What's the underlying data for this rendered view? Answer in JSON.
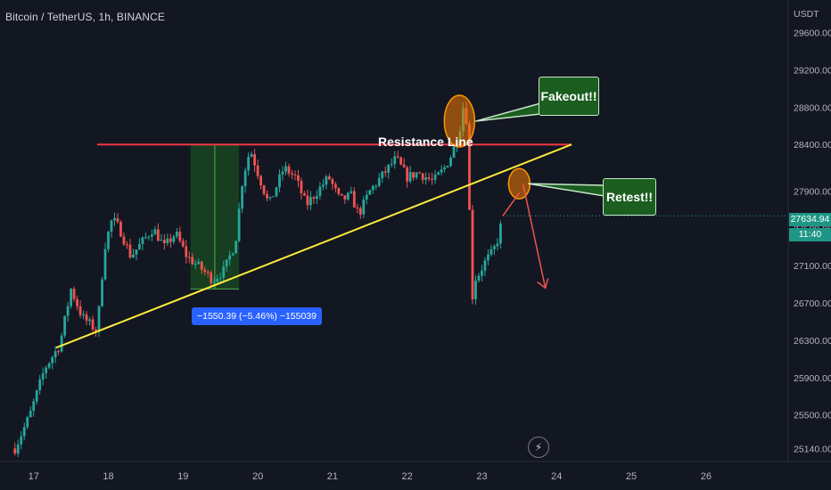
{
  "symbol": "Bitcoin / TetherUS, 1h, BINANCE",
  "chart_data": {
    "type": "candlestick",
    "currency": "USDT",
    "x_unit": "days",
    "x_ticks": [
      "17",
      "18",
      "19",
      "20",
      "21",
      "22",
      "23",
      "24",
      "25",
      "26"
    ],
    "y_ticks": [
      "29600.00",
      "29200.00",
      "28800.00",
      "28400.00",
      "27900.00",
      "27500.00",
      "27100.00",
      "26700.00",
      "26300.00",
      "25900.00",
      "25500.00",
      "25140.00"
    ],
    "y_tick_values": [
      29600,
      29200,
      28800,
      28400,
      27900,
      27500,
      27100,
      26700,
      26300,
      25900,
      25500,
      25140
    ],
    "ylim": [
      25000,
      29950
    ],
    "xlim": [
      16.55,
      27.1
    ],
    "current_price": "27634.94",
    "countdown": "11:40",
    "price_path": [
      [
        16.75,
        25140
      ],
      [
        16.95,
        25500
      ],
      [
        17.15,
        26000
      ],
      [
        17.35,
        26250
      ],
      [
        17.5,
        26850
      ],
      [
        17.65,
        26550
      ],
      [
        17.85,
        26400
      ],
      [
        17.95,
        27300
      ],
      [
        18.05,
        27600
      ],
      [
        18.15,
        27500
      ],
      [
        18.3,
        27200
      ],
      [
        18.45,
        27350
      ],
      [
        18.6,
        27500
      ],
      [
        18.75,
        27300
      ],
      [
        18.9,
        27450
      ],
      [
        19.05,
        27200
      ],
      [
        19.2,
        27100
      ],
      [
        19.4,
        26950
      ],
      [
        19.55,
        27050
      ],
      [
        19.7,
        27350
      ],
      [
        19.8,
        28050
      ],
      [
        19.9,
        28350
      ],
      [
        20.0,
        28100
      ],
      [
        20.15,
        27750
      ],
      [
        20.35,
        28150
      ],
      [
        20.5,
        28050
      ],
      [
        20.65,
        27750
      ],
      [
        20.8,
        27900
      ],
      [
        20.95,
        28050
      ],
      [
        21.1,
        27800
      ],
      [
        21.25,
        27850
      ],
      [
        21.35,
        27650
      ],
      [
        21.5,
        27900
      ],
      [
        21.7,
        28100
      ],
      [
        21.85,
        28250
      ],
      [
        22.0,
        28050
      ],
      [
        22.15,
        28100
      ],
      [
        22.35,
        28000
      ],
      [
        22.5,
        28150
      ],
      [
        22.6,
        28300
      ],
      [
        22.7,
        28550
      ],
      [
        22.75,
        28800
      ],
      [
        22.8,
        28650
      ],
      [
        22.83,
        27900
      ],
      [
        22.85,
        26600
      ],
      [
        22.9,
        26950
      ],
      [
        22.95,
        27000
      ],
      [
        23.05,
        27150
      ],
      [
        23.15,
        27250
      ],
      [
        23.22,
        27400
      ],
      [
        23.28,
        27634.94
      ]
    ],
    "resistance_line": {
      "label": "Resistance Line",
      "from": [
        17.85,
        28400
      ],
      "to": [
        24.2,
        28400
      ]
    },
    "trend_line": {
      "from": [
        17.3,
        26220
      ],
      "to": [
        24.2,
        28400
      ]
    },
    "measure_box": {
      "from": [
        19.1,
        28400
      ],
      "to": [
        19.75,
        26850
      ],
      "label": "−1550.39 (−5.46%) −155039"
    },
    "annotations": [
      {
        "text": "Fakeout!!",
        "at": [
          22.7,
          28650
        ]
      },
      {
        "text": "Retest!!",
        "at": [
          23.5,
          27980
        ]
      }
    ],
    "projection_arrow": {
      "from": [
        23.55,
        27980
      ],
      "to": [
        23.85,
        26860
      ]
    },
    "colors": {
      "background": "#131722",
      "up": "#26a69a",
      "down": "#ef5350",
      "resistance": "#f23645",
      "trend": "#ffeb3b",
      "measure": "#1b5e20",
      "label": "#2962ff",
      "marker": "#f57c00"
    }
  }
}
